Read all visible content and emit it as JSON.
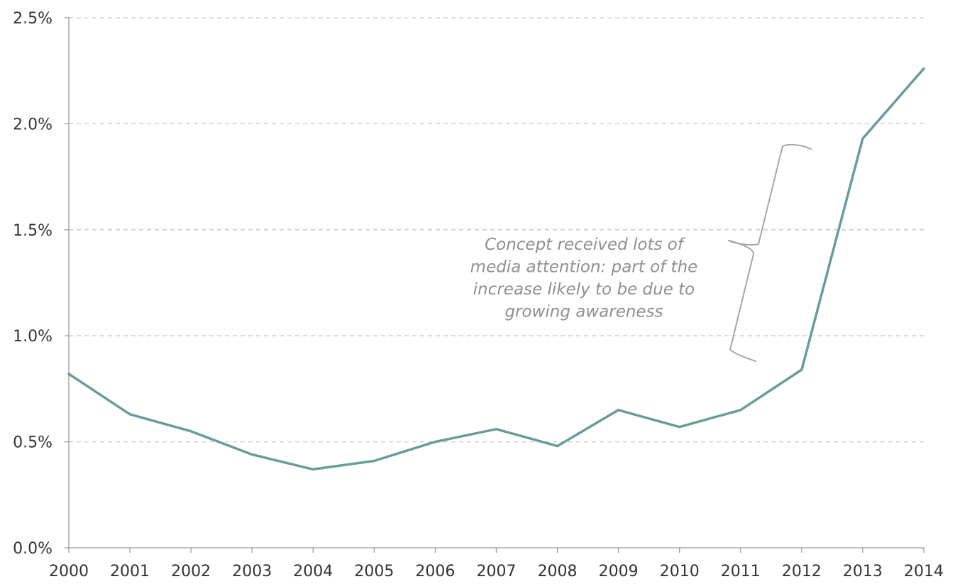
{
  "chart_data": {
    "type": "line",
    "title": "",
    "xlabel": "",
    "ylabel": "",
    "x": [
      "2000",
      "2001",
      "2002",
      "2003",
      "2004",
      "2005",
      "2006",
      "2007",
      "2008",
      "2009",
      "2010",
      "2011",
      "2012",
      "2013",
      "2014"
    ],
    "series": [
      {
        "values": [
          0.82,
          0.63,
          0.55,
          0.44,
          0.37,
          0.41,
          0.5,
          0.56,
          0.48,
          0.65,
          0.57,
          0.65,
          0.84,
          1.93,
          2.26
        ]
      }
    ],
    "y_unit": "%",
    "ylim": [
      0,
      2.5
    ],
    "y_ticks": [
      "0.0%",
      "0.5%",
      "1.0%",
      "1.5%",
      "2.0%",
      "2.5%"
    ],
    "grid": "horizontal dashed",
    "legend": "none",
    "annotation": {
      "lines": [
        "Concept received lots of",
        "media attention: part of the",
        "increase likely to be due to",
        "growing awareness"
      ],
      "marks_range": [
        "2012",
        "2013"
      ]
    },
    "colors": {
      "series": "#6a9b9b",
      "annotation": "#8f8f8f",
      "grid": "#c8c8c8"
    }
  }
}
